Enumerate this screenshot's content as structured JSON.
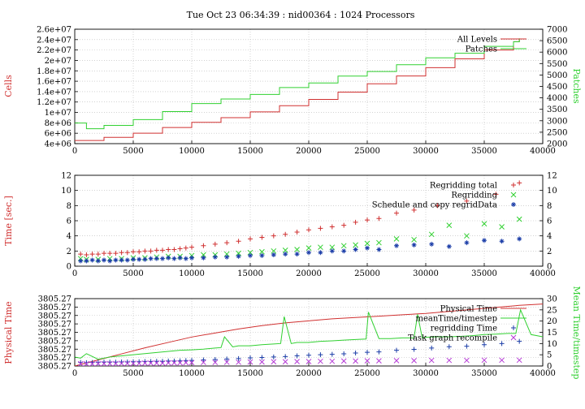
{
  "title": "Tue Oct 23 06:34:39 : nid00364 : 1024 Processors",
  "colors": {
    "red": "#d03030",
    "green": "#30d030",
    "blue": "#1c3ea8",
    "purple": "#b53bd6",
    "grid": "#b8b8b8"
  },
  "chart_data": [
    {
      "type": "line",
      "grid": true,
      "legend_placement": "top-right",
      "xlim": [
        0,
        40000
      ],
      "ylim": [
        4000000,
        26000000
      ],
      "y2lim": [
        2000,
        7000
      ],
      "ylabel": "Cells",
      "y2label": "Patches",
      "x_ticks": [
        "0",
        "5000",
        "10000",
        "15000",
        "20000",
        "25000",
        "30000",
        "35000",
        "40000"
      ],
      "y_ticks": [
        "4e+06",
        "6e+06",
        "8e+06",
        "1e+07",
        "1.2e+07",
        "1.4e+07",
        "1.6e+07",
        "1.8e+07",
        "2e+07",
        "2.2e+07",
        "2.4e+07",
        "2.6e+07"
      ],
      "y2_ticks": [
        "2000",
        "2500",
        "3000",
        "3500",
        "4000",
        "4500",
        "5000",
        "5500",
        "6000",
        "6500",
        "7000"
      ],
      "series": [
        {
          "name": "All Levels",
          "axis": "y",
          "color": "red",
          "step": true,
          "x": [
            0,
            2500,
            5000,
            7500,
            10000,
            12500,
            15000,
            17500,
            20000,
            22500,
            25000,
            27500,
            30000,
            32500,
            35000,
            37500,
            38000
          ],
          "values": [
            4600000,
            5200000,
            6000000,
            7100000,
            8100000,
            9000000,
            10100000,
            11300000,
            12500000,
            13900000,
            15500000,
            17000000,
            18600000,
            20300000,
            22000000,
            23600000,
            24000000
          ]
        },
        {
          "name": "Patches",
          "axis": "y2",
          "color": "green",
          "step": true,
          "x": [
            0,
            1000,
            2500,
            5000,
            7500,
            10000,
            12500,
            15000,
            17500,
            20000,
            22500,
            25000,
            27500,
            30000,
            32500,
            35000,
            37500,
            38000
          ],
          "values": [
            2900,
            2650,
            2800,
            3050,
            3400,
            3750,
            3950,
            4150,
            4450,
            4650,
            4950,
            5150,
            5450,
            5750,
            5950,
            6250,
            6450,
            6600
          ]
        }
      ]
    },
    {
      "type": "scatter",
      "grid": true,
      "legend_placement": "top-right",
      "xlim": [
        0,
        40000
      ],
      "ylim": [
        0,
        12
      ],
      "ylabel": "Time [sec.]",
      "x_ticks": [
        "0",
        "5000",
        "10000",
        "15000",
        "20000",
        "25000",
        "30000",
        "35000",
        "40000"
      ],
      "y_ticks": [
        "0",
        "2",
        "4",
        "6",
        "8",
        "10",
        "12"
      ],
      "series": [
        {
          "name": "Regridding total",
          "marker": "+",
          "color": "red",
          "x": [
            500,
            1000,
            1500,
            2000,
            2500,
            3000,
            3500,
            4000,
            4500,
            5000,
            5500,
            6000,
            6500,
            7000,
            7500,
            8000,
            8500,
            9000,
            9500,
            10000,
            11000,
            12000,
            13000,
            14000,
            15000,
            16000,
            17000,
            18000,
            19000,
            20000,
            21000,
            22000,
            23000,
            24000,
            25000,
            26000,
            27500,
            29000,
            31000,
            33500,
            36000,
            38000
          ],
          "values": [
            1.6,
            1.5,
            1.6,
            1.6,
            1.7,
            1.7,
            1.7,
            1.8,
            1.8,
            1.9,
            1.9,
            2.0,
            2.0,
            2.1,
            2.1,
            2.2,
            2.2,
            2.3,
            2.4,
            2.5,
            2.7,
            2.9,
            3.1,
            3.3,
            3.6,
            3.8,
            4.0,
            4.2,
            4.5,
            4.8,
            5.0,
            5.2,
            5.4,
            5.8,
            6.1,
            6.3,
            7.0,
            7.4,
            8.0,
            8.6,
            9.5,
            11.0
          ]
        },
        {
          "name": "Regridding",
          "marker": "x",
          "color": "green",
          "x": [
            500,
            1000,
            2000,
            3000,
            4000,
            5000,
            6000,
            7000,
            8000,
            9000,
            10000,
            11000,
            12000,
            13000,
            14000,
            15000,
            16000,
            17000,
            18000,
            19000,
            20000,
            21000,
            22000,
            23000,
            24000,
            25000,
            26000,
            27500,
            29000,
            30500,
            32000,
            33500,
            35000,
            36500,
            38000
          ],
          "values": [
            1.0,
            0.9,
            0.9,
            1.0,
            1.0,
            1.1,
            1.1,
            1.2,
            1.3,
            1.3,
            1.4,
            1.5,
            1.5,
            1.6,
            1.7,
            1.8,
            1.9,
            2.0,
            2.1,
            2.2,
            2.4,
            2.5,
            2.5,
            2.7,
            2.8,
            3.0,
            3.1,
            3.6,
            3.5,
            4.2,
            5.4,
            4.0,
            5.6,
            5.2,
            6.2
          ]
        },
        {
          "name": "Schedule and copy regridData",
          "marker": "*",
          "color": "blue",
          "x": [
            500,
            1000,
            1500,
            2000,
            2500,
            3000,
            3500,
            4000,
            4500,
            5000,
            5500,
            6000,
            6500,
            7000,
            7500,
            8000,
            8500,
            9000,
            9500,
            10000,
            11000,
            12000,
            13000,
            14000,
            15000,
            16000,
            17000,
            18000,
            19000,
            20000,
            21000,
            22000,
            23000,
            24000,
            25000,
            26000,
            27500,
            29000,
            30500,
            32000,
            33500,
            35000,
            36500,
            38000
          ],
          "values": [
            0.7,
            0.7,
            0.8,
            0.7,
            0.8,
            0.7,
            0.8,
            0.8,
            0.8,
            0.9,
            0.9,
            0.9,
            1.0,
            1.0,
            1.0,
            1.1,
            1.0,
            1.1,
            1.0,
            1.1,
            1.1,
            1.2,
            1.2,
            1.3,
            1.4,
            1.4,
            1.5,
            1.6,
            1.6,
            1.8,
            1.8,
            2.0,
            2.0,
            2.2,
            2.4,
            2.2,
            2.7,
            2.8,
            2.9,
            2.6,
            3.1,
            3.4,
            3.3,
            3.6
          ]
        }
      ]
    },
    {
      "type": "line",
      "grid": true,
      "legend_placement": "top-right",
      "xlim": [
        0,
        40000
      ],
      "ylim": [
        0,
        1
      ],
      "y2lim": [
        0,
        30
      ],
      "ylabel": "Physical Time",
      "y2label": "Mean Time/timestep",
      "x_ticks": [
        "0",
        "5000",
        "10000",
        "15000",
        "20000",
        "25000",
        "30000",
        "35000",
        "40000"
      ],
      "y_ticks": [
        "3805.27",
        "3805.27",
        "3805.27",
        "3805.27",
        "3805.27",
        "3805.27",
        "3805.27",
        "3805.27",
        "3805.27"
      ],
      "y2_ticks": [
        "0",
        "5",
        "10",
        "15",
        "20",
        "25",
        "30"
      ],
      "series": [
        {
          "name": "Physical Time",
          "axis": "y",
          "color": "red",
          "style": "line",
          "x": [
            0,
            2000,
            4000,
            6000,
            8000,
            10000,
            12000,
            14000,
            16000,
            18000,
            20000,
            22000,
            24000,
            26000,
            28000,
            30000,
            32000,
            34000,
            36000,
            38000,
            40000
          ],
          "values": [
            0.0,
            0.09,
            0.18,
            0.27,
            0.35,
            0.43,
            0.49,
            0.55,
            0.6,
            0.64,
            0.67,
            0.7,
            0.72,
            0.74,
            0.76,
            0.78,
            0.81,
            0.84,
            0.87,
            0.9,
            0.92
          ]
        },
        {
          "name": "meanTime/timestep",
          "axis": "y2",
          "color": "green",
          "style": "line",
          "x": [
            0,
            500,
            1000,
            2000,
            3000,
            4000,
            5000,
            6000,
            7000,
            8000,
            9000,
            10000,
            11000,
            12000,
            12500,
            12800,
            13500,
            14000,
            15000,
            16000,
            17000,
            17600,
            17900,
            18500,
            19000,
            20000,
            21000,
            22000,
            23000,
            24000,
            24900,
            25100,
            26000,
            27000,
            28000,
            29000,
            29300,
            29700,
            30000,
            31000,
            32000,
            33000,
            34000,
            35000,
            36000,
            37000,
            37700,
            38100,
            39000,
            40000
          ],
          "values": [
            4.0,
            3.5,
            5.5,
            3.0,
            4.0,
            4.5,
            5.0,
            5.5,
            6.0,
            6.5,
            7.0,
            7.2,
            7.5,
            8.0,
            8.2,
            13.0,
            8.5,
            9.0,
            9.0,
            9.5,
            9.8,
            10.0,
            22.0,
            10.0,
            10.5,
            10.5,
            11.0,
            11.2,
            11.5,
            11.8,
            12.0,
            24.0,
            12.2,
            12.2,
            12.5,
            12.5,
            23.0,
            12.5,
            12.8,
            13.0,
            13.0,
            13.2,
            13.5,
            14.0,
            14.2,
            14.5,
            14.5,
            25.0,
            14.0,
            13.0
          ]
        },
        {
          "name": "regridding Time",
          "axis": "y2",
          "color": "blue",
          "marker": "+",
          "x": [
            500,
            1000,
            1500,
            2000,
            2500,
            3000,
            3500,
            4000,
            4500,
            5000,
            5500,
            6000,
            6500,
            7000,
            7500,
            8000,
            8500,
            9000,
            9500,
            10000,
            11000,
            12000,
            13000,
            14000,
            15000,
            16000,
            17000,
            18000,
            19000,
            20000,
            21000,
            22000,
            23000,
            24000,
            25000,
            26000,
            27500,
            29000,
            30500,
            32000,
            33500,
            35000,
            36500,
            38000
          ],
          "values": [
            1.6,
            1.5,
            1.6,
            1.6,
            1.7,
            1.7,
            1.7,
            1.8,
            1.8,
            1.9,
            1.9,
            2.0,
            2.0,
            2.1,
            2.1,
            2.2,
            2.2,
            2.3,
            2.4,
            2.5,
            2.7,
            2.9,
            3.1,
            3.3,
            3.6,
            3.8,
            4.0,
            4.2,
            4.5,
            4.8,
            5.0,
            5.2,
            5.4,
            5.8,
            6.1,
            6.3,
            7.0,
            7.4,
            8.0,
            8.6,
            8.8,
            9.5,
            10.0,
            11.0
          ]
        },
        {
          "name": "Task graph recompile",
          "axis": "y2",
          "color": "purple",
          "marker": "x",
          "x": [
            500,
            1000,
            1500,
            2000,
            2500,
            3000,
            3500,
            4000,
            4500,
            5000,
            5500,
            6000,
            6500,
            7000,
            7500,
            8000,
            8500,
            9000,
            9500,
            10000,
            11000,
            12000,
            13000,
            14000,
            15000,
            16000,
            17000,
            18000,
            19000,
            20000,
            21000,
            22000,
            23000,
            24000,
            25000,
            26000,
            27500,
            29000,
            30500,
            32000,
            33500,
            35000,
            36500,
            38000
          ],
          "values": [
            1.0,
            1.0,
            1.0,
            1.1,
            1.1,
            1.1,
            1.1,
            1.2,
            1.2,
            1.2,
            1.2,
            1.3,
            1.3,
            1.3,
            1.3,
            1.4,
            1.4,
            1.4,
            1.5,
            1.5,
            1.6,
            1.6,
            1.7,
            1.7,
            1.8,
            1.8,
            1.9,
            1.9,
            2.0,
            2.0,
            2.1,
            2.1,
            2.2,
            2.2,
            2.3,
            2.3,
            2.4,
            2.4,
            2.5,
            2.5,
            2.5,
            2.6,
            2.6,
            2.6
          ]
        }
      ]
    }
  ]
}
